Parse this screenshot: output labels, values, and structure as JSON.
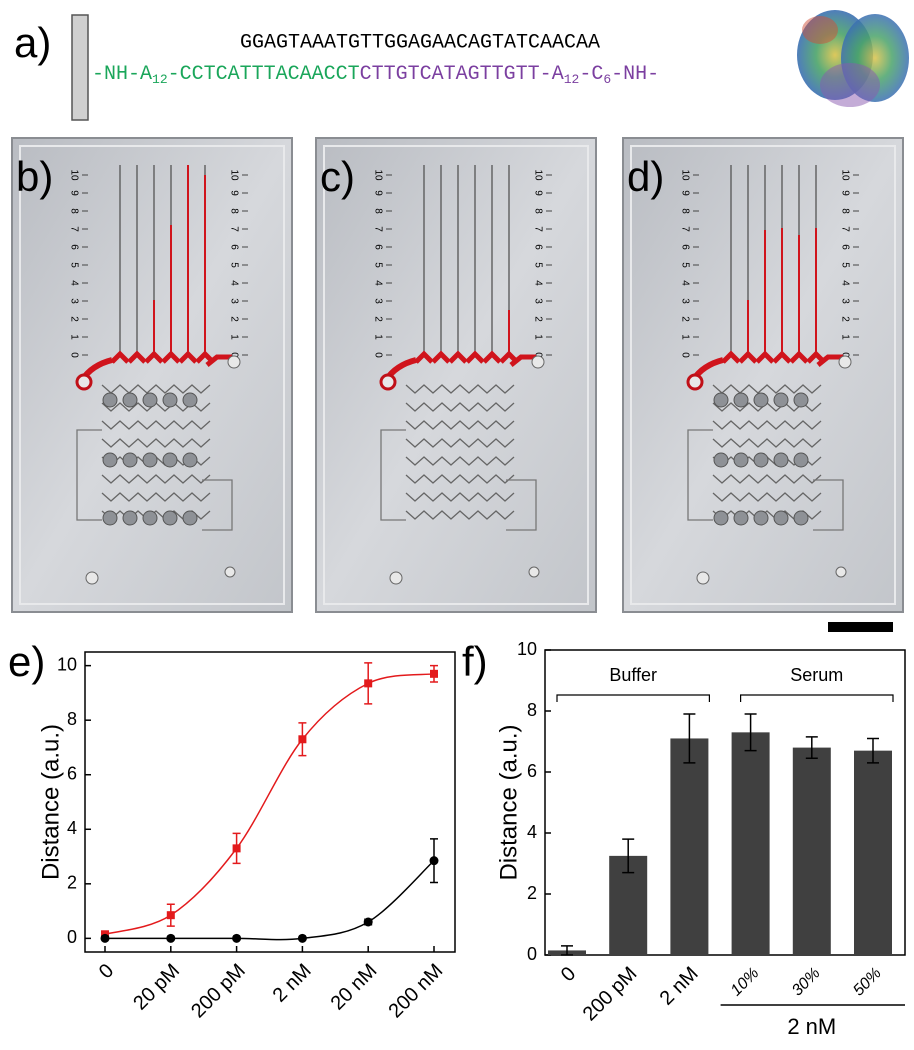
{
  "panel_a": {
    "label": "a)",
    "top_strand": "GGAGTAAATGTTGGAGAACAGTATCAACAA",
    "top_color": "#e8892b",
    "bottom_strand": [
      {
        "text": "-NH-A",
        "color": "#1aa65a"
      },
      {
        "text": "12",
        "color": "#1aa65a",
        "sub": true
      },
      {
        "text": "-CCTCATTTACAACCT",
        "color": "#1aa65a"
      },
      {
        "text": "CTTGTCATAGTTGTT-A",
        "color": "#7b3fa0"
      },
      {
        "text": "12",
        "color": "#7b3fa0",
        "sub": true
      },
      {
        "text": "-C",
        "color": "#7b3fa0"
      },
      {
        "text": "6",
        "color": "#7b3fa0",
        "sub": true
      },
      {
        "text": "-NH-",
        "color": "#7b3fa0"
      }
    ]
  },
  "photo_panels": [
    {
      "label": "b)"
    },
    {
      "label": "c)"
    },
    {
      "label": "d)"
    }
  ],
  "chip_scale": [
    0,
    1,
    2,
    3,
    4,
    5,
    6,
    7,
    8,
    9,
    10
  ],
  "chart_data": [
    {
      "type": "line",
      "panel_label": "e)",
      "y_label": "Distance (a.u.)",
      "categories": [
        "0",
        "20 pM",
        "200 pM",
        "2 nM",
        "20 nM",
        "200 nM"
      ],
      "series": [
        {
          "color": "#e31a1c",
          "marker": "square",
          "values": [
            0.15,
            0.85,
            3.3,
            7.3,
            9.35,
            9.7
          ],
          "errors": [
            0.1,
            0.4,
            0.55,
            0.6,
            0.75,
            0.3
          ]
        },
        {
          "color": "#000000",
          "marker": "circle",
          "values": [
            0,
            0,
            0,
            0,
            0.6,
            2.85
          ],
          "errors": [
            0.05,
            0.03,
            0.03,
            0.03,
            0.1,
            0.8
          ]
        }
      ],
      "ylim": [
        -0.5,
        10.5
      ],
      "yticks": [
        0,
        2,
        4,
        6,
        8,
        10
      ]
    },
    {
      "type": "bar",
      "panel_label": "f)",
      "y_label": "Distance (a.u.)",
      "categories": [
        "0",
        "200 pM",
        "2 nM",
        "10%",
        "30%",
        "50%"
      ],
      "values": [
        0.15,
        3.25,
        7.1,
        7.3,
        6.8,
        6.7
      ],
      "errors": [
        0.15,
        0.55,
        0.8,
        0.6,
        0.35,
        0.4
      ],
      "color": "#404040",
      "ylim": [
        0,
        10
      ],
      "yticks": [
        0,
        2,
        4,
        6,
        8,
        10
      ],
      "groups": [
        {
          "label": "Buffer",
          "from": 0,
          "to": 2
        },
        {
          "label": "Serum",
          "from": 3,
          "to": 5
        }
      ],
      "subgroup": {
        "label": "2 nM",
        "from": 3,
        "to": 5
      }
    }
  ]
}
